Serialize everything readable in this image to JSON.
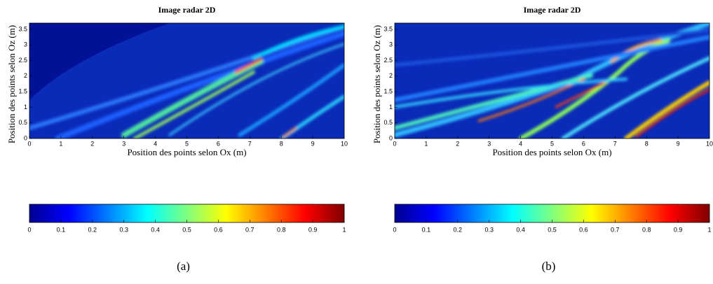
{
  "chart_data": [
    {
      "type": "heatmap",
      "title": "Image radar 2D",
      "xlabel": "Position des points selon Ox (m)",
      "ylabel": "Position des points selon Oz (m)",
      "xlim": [
        0,
        10
      ],
      "xticks": [
        0,
        1,
        2,
        3,
        4,
        5,
        6,
        7,
        8,
        9,
        10
      ],
      "ylim": [
        0,
        3.7
      ],
      "yticks": [
        0,
        0.5,
        1,
        1.5,
        2,
        2.5,
        3,
        3.5
      ],
      "clim": [
        0,
        1
      ],
      "cticks": [
        0,
        0.1,
        0.2,
        0.3,
        0.4,
        0.5,
        0.6,
        0.7,
        0.8,
        0.9,
        1
      ],
      "caption": "(a)"
    },
    {
      "type": "heatmap",
      "title": "Image radar 2D",
      "xlabel": "Position des points selon Ox (m)",
      "ylabel": "Position des points selon Oz (m)",
      "xlim": [
        0,
        10
      ],
      "xticks": [
        0,
        1,
        2,
        3,
        4,
        5,
        6,
        7,
        8,
        9,
        10
      ],
      "ylim": [
        0,
        3.7
      ],
      "yticks": [
        0,
        0.5,
        1,
        1.5,
        2,
        2.5,
        3,
        3.5
      ],
      "clim": [
        0,
        1
      ],
      "cticks": [
        0,
        0.1,
        0.2,
        0.3,
        0.4,
        0.5,
        0.6,
        0.7,
        0.8,
        0.9,
        1
      ],
      "caption": "(b)"
    }
  ]
}
